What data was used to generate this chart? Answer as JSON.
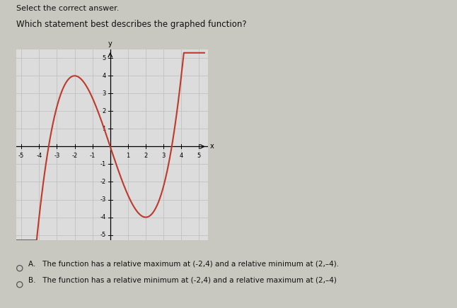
{
  "title_line1": "Select the correct answer.",
  "title_line2": "Which statement best describes the graphed function?",
  "xmin": -5,
  "xmax": 5,
  "ymin": -5,
  "ymax": 5,
  "curve_color": "#c0392b",
  "curve_linewidth": 1.5,
  "grid_color": "#bbbbbb",
  "grid_bg": "#dcdcdc",
  "background_color": "#c8c8c0",
  "option_A": "The function has a relative maximum at (-2,4) and a relative minimum at (2,–4).",
  "option_B": "The function has a relative minimum at (-2,4) and a relative maximum at (2,–4)",
  "text_color": "#111111",
  "fig_bg": "#c8c8c0",
  "label_fontsize": 7.0,
  "tick_fontsize": 6.0
}
